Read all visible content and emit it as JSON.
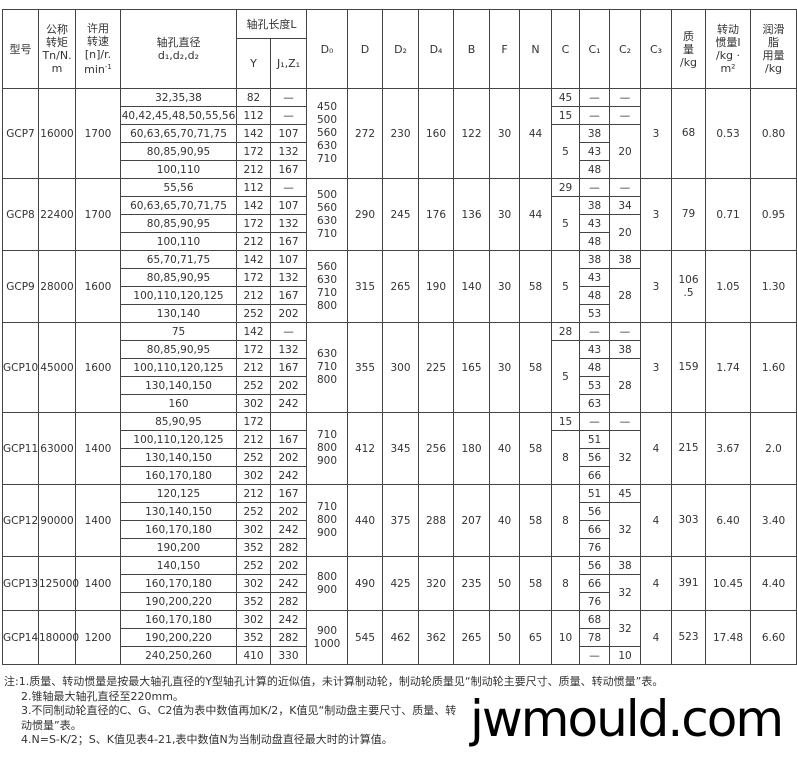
{
  "headers": {
    "model": "型号",
    "torque": "公称\n转矩\nTn/N.\nm",
    "speed": "许用\n转速\n[n]/r.\nmin",
    "speed_sup": "-1",
    "bore": "轴孔直径",
    "bore_sub": "d₁,d₂,d₂",
    "length": "轴孔长度L",
    "Y": "Y",
    "J": "J₁,Z₁",
    "D0": "D₀",
    "D": "D",
    "D2": "D₂",
    "D4": "D₄",
    "B": "B",
    "F": "F",
    "N": "N",
    "C": "C",
    "C1": "C₁",
    "C2": "C₂",
    "C3": "C₃",
    "mass": "质\n量\n/kg",
    "inertia": "转动\n惯量I\n/kg ·\nm²",
    "grease": "润滑\n脂\n用量\n/kg"
  },
  "groups": [
    {
      "model": "GCP7",
      "torque": "16000",
      "speed": "1700",
      "D0": "450\n500\n560\n630\n710",
      "D": "272",
      "D2": "230",
      "D4": "160",
      "B": "122",
      "F": "30",
      "N": "44",
      "C3": "3",
      "mass": "68",
      "inertia": "0.53",
      "grease": "0.80",
      "rows": [
        [
          "32,35,38",
          "82",
          "—"
        ],
        [
          "40,42,45,48,50,55,56",
          "112",
          "—"
        ],
        [
          "60,63,65,70,71,75",
          "142",
          "107"
        ],
        [
          "80,85,90,95",
          "172",
          "132"
        ],
        [
          "100,110",
          "212",
          "167"
        ]
      ],
      "C": [
        [
          "45",
          1
        ],
        [
          "15",
          1
        ],
        [
          "5",
          3
        ]
      ],
      "C1": [
        "—",
        "—",
        "38",
        "43",
        "48"
      ],
      "C2": [
        [
          "—",
          1
        ],
        [
          "—",
          1
        ],
        [
          "20",
          3
        ]
      ]
    },
    {
      "model": "GCP8",
      "torque": "22400",
      "speed": "1700",
      "D0": "500\n560\n630\n710",
      "D": "290",
      "D2": "245",
      "D4": "176",
      "B": "136",
      "F": "30",
      "N": "44",
      "C3": "3",
      "mass": "79",
      "inertia": "0.71",
      "grease": "0.95",
      "rows": [
        [
          "55,56",
          "112",
          "—"
        ],
        [
          "60,63,65,70,71,75",
          "142",
          "107"
        ],
        [
          "80,85,90,95",
          "172",
          "132"
        ],
        [
          "100,110",
          "212",
          "167"
        ]
      ],
      "C": [
        [
          "29",
          1
        ],
        [
          "5",
          3
        ]
      ],
      "C1": [
        "—",
        "38",
        "43",
        "48"
      ],
      "C2": [
        [
          "—",
          1
        ],
        [
          "34",
          1
        ],
        [
          "20",
          2
        ]
      ]
    },
    {
      "model": "GCP9",
      "torque": "28000",
      "speed": "1600",
      "D0": "560\n630\n710\n800",
      "D": "315",
      "D2": "265",
      "D4": "190",
      "B": "140",
      "F": "30",
      "N": "58",
      "C3": "3",
      "mass": "106\n.5",
      "inertia": "1.05",
      "grease": "1.30",
      "rows": [
        [
          "65,70,71,75",
          "142",
          "107"
        ],
        [
          "80,85,90,95",
          "172",
          "132"
        ],
        [
          "100,110,120,125",
          "212",
          "167"
        ],
        [
          "130,140",
          "252",
          "202"
        ]
      ],
      "C": [
        [
          "5",
          4
        ]
      ],
      "C1": [
        "38",
        "43",
        "48",
        "53"
      ],
      "C2": [
        [
          "38",
          1
        ],
        [
          "28",
          3
        ]
      ]
    },
    {
      "model": "GCP10",
      "torque": "45000",
      "speed": "1600",
      "D0": "630\n710\n800",
      "D": "355",
      "D2": "300",
      "D4": "225",
      "B": "165",
      "F": "30",
      "N": "58",
      "C3": "3",
      "mass": "159",
      "inertia": "1.74",
      "grease": "1.60",
      "rows": [
        [
          "75",
          "142",
          "—"
        ],
        [
          "80,85,90,95",
          "172",
          "132"
        ],
        [
          "100,110,120,125",
          "212",
          "167"
        ],
        [
          "130,140,150",
          "252",
          "202"
        ],
        [
          "160",
          "302",
          "242"
        ]
      ],
      "C": [
        [
          "28",
          1
        ],
        [
          "5",
          4
        ]
      ],
      "C1": [
        "—",
        "43",
        "48",
        "53",
        "63"
      ],
      "C2": [
        [
          "—",
          1
        ],
        [
          "38",
          1
        ],
        [
          "28",
          3
        ]
      ]
    },
    {
      "model": "GCP11",
      "torque": "63000",
      "speed": "1400",
      "D0": "710\n800\n900",
      "D": "412",
      "D2": "345",
      "D4": "256",
      "B": "180",
      "F": "40",
      "N": "58",
      "C3": "4",
      "mass": "215",
      "inertia": "3.67",
      "grease": "2.0",
      "rows": [
        [
          "85,90,95",
          "172",
          ""
        ],
        [
          "100,110,120,125",
          "212",
          "167"
        ],
        [
          "130,140,150",
          "252",
          "202"
        ],
        [
          "160,170,180",
          "302",
          "242"
        ]
      ],
      "C": [
        [
          "15",
          1
        ],
        [
          "8",
          3
        ]
      ],
      "C1": [
        "—",
        "51",
        "56",
        "66"
      ],
      "C2": [
        [
          "—",
          1
        ],
        [
          "32",
          3
        ]
      ]
    },
    {
      "model": "GCP12",
      "torque": "90000",
      "speed": "1400",
      "D0": "710\n800\n900",
      "D": "440",
      "D2": "375",
      "D4": "288",
      "B": "207",
      "F": "40",
      "N": "58",
      "C3": "4",
      "mass": "303",
      "inertia": "6.40",
      "grease": "3.40",
      "rows": [
        [
          "120,125",
          "212",
          "167"
        ],
        [
          "130,140,150",
          "252",
          "202"
        ],
        [
          "160,170,180",
          "302",
          "242"
        ],
        [
          "190,200",
          "352",
          "282"
        ]
      ],
      "C": [
        [
          "8",
          4
        ]
      ],
      "C1": [
        "51",
        "56",
        "66",
        "76"
      ],
      "C2": [
        [
          "45",
          1
        ],
        [
          "32",
          3
        ]
      ]
    },
    {
      "model": "GCP13",
      "torque": "125000",
      "speed": "1400",
      "D0": "800\n900",
      "D": "490",
      "D2": "425",
      "D4": "320",
      "B": "235",
      "F": "50",
      "N": "58",
      "C3": "4",
      "mass": "391",
      "inertia": "10.45",
      "grease": "4.40",
      "rows": [
        [
          "140,150",
          "252",
          "202"
        ],
        [
          "160,170,180",
          "302",
          "242"
        ],
        [
          "190,200,220",
          "352",
          "282"
        ]
      ],
      "C": [
        [
          "8",
          3
        ]
      ],
      "C1": [
        "56",
        "66",
        "76"
      ],
      "C2": [
        [
          "38",
          1
        ],
        [
          "32",
          2
        ]
      ]
    },
    {
      "model": "GCP14",
      "torque": "180000",
      "speed": "1200",
      "D0": "900\n1000",
      "D": "545",
      "D2": "462",
      "D4": "362",
      "B": "265",
      "F": "50",
      "N": "65",
      "C3": "4",
      "mass": "523",
      "inertia": "17.48",
      "grease": "6.60",
      "rows": [
        [
          "160,170,180",
          "302",
          "242"
        ],
        [
          "190,200,220",
          "352",
          "282"
        ],
        [
          "240,250,260",
          "410",
          "330"
        ]
      ],
      "C": [
        [
          "10",
          3
        ]
      ],
      "C1": [
        "68",
        "78",
        "—"
      ],
      "C2": [
        [
          "32",
          2
        ],
        [
          "10",
          1
        ]
      ]
    }
  ],
  "notes": [
    "注:1.质量、转动惯量是按最大轴孔直径的Y型轴孔计算的近似值，未计算制动轮，制动轮质量见“制动轮主要尺寸、质量、转动惯量”表。",
    "2.锥轴最大轴孔直径至220mm。",
    "3.不同制动轮直径的C、G、C2值为表中数值再加K/2，K值见“制动盘主要尺寸、质量、转动惯量”表。",
    "4.N=S-K/2；S、K值见表4-21,表中数值N为当制动盘直径最大时的计算值。"
  ],
  "watermark": "jwmould.com"
}
